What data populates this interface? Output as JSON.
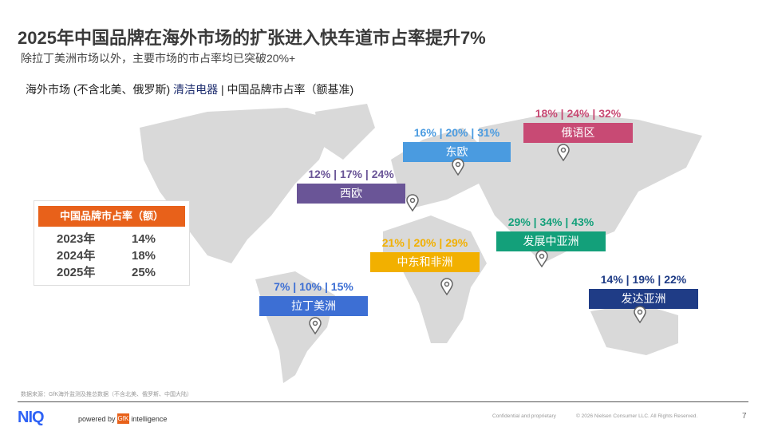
{
  "title": "2025年中国品牌在海外市场的扩张进入快车道市占率提升7%",
  "subtitle": "除拉丁美洲市场以外，主要市场的市占率均已突破20%+",
  "scope": {
    "prefix": "海外市场 (不含北美、俄罗斯) ",
    "category": "清洁电器",
    "suffix": " | 中国品牌市占率（额基准)"
  },
  "regions": [
    {
      "name": "俄语区",
      "values": "18% | 24% | 32%",
      "color": "#c84a74"
    },
    {
      "name": "东欧",
      "values": "16% | 20% | 31%",
      "color": "#4a9be0"
    },
    {
      "name": "西欧",
      "values": "12% | 17% | 24%",
      "color": "#6a5597"
    },
    {
      "name": "发展中亚洲",
      "values": "29% | 34% | 43%",
      "color": "#13a07a"
    },
    {
      "name": "中东和非洲",
      "values": "21% | 20% | 29%",
      "color": "#f2b000"
    },
    {
      "name": "拉丁美洲",
      "values": "7% | 10% | 15%",
      "color": "#3d6fd4"
    },
    {
      "name": "发达亚洲",
      "values": "14% | 19% | 22%",
      "color": "#1f3c86"
    }
  ],
  "legend": {
    "header": "中国品牌市占率（额）",
    "rows": [
      {
        "year": "2023年",
        "value": "14%"
      },
      {
        "year": "2024年",
        "value": "18%"
      },
      {
        "year": "2025年",
        "value": "25%"
      }
    ]
  },
  "footer": {
    "source": "数据来源：GfK海外监测及推总数据（不含北美、俄罗斯、中国大陆）",
    "logo": "NIQ",
    "powered": "powered by",
    "gfk": "GfK",
    "intelligence": "intelligence",
    "confidential": "Confidential and proprietary",
    "copyright": "© 2026 Nielsen Consumer LLC. All Rights Reserved.",
    "page": "7"
  }
}
